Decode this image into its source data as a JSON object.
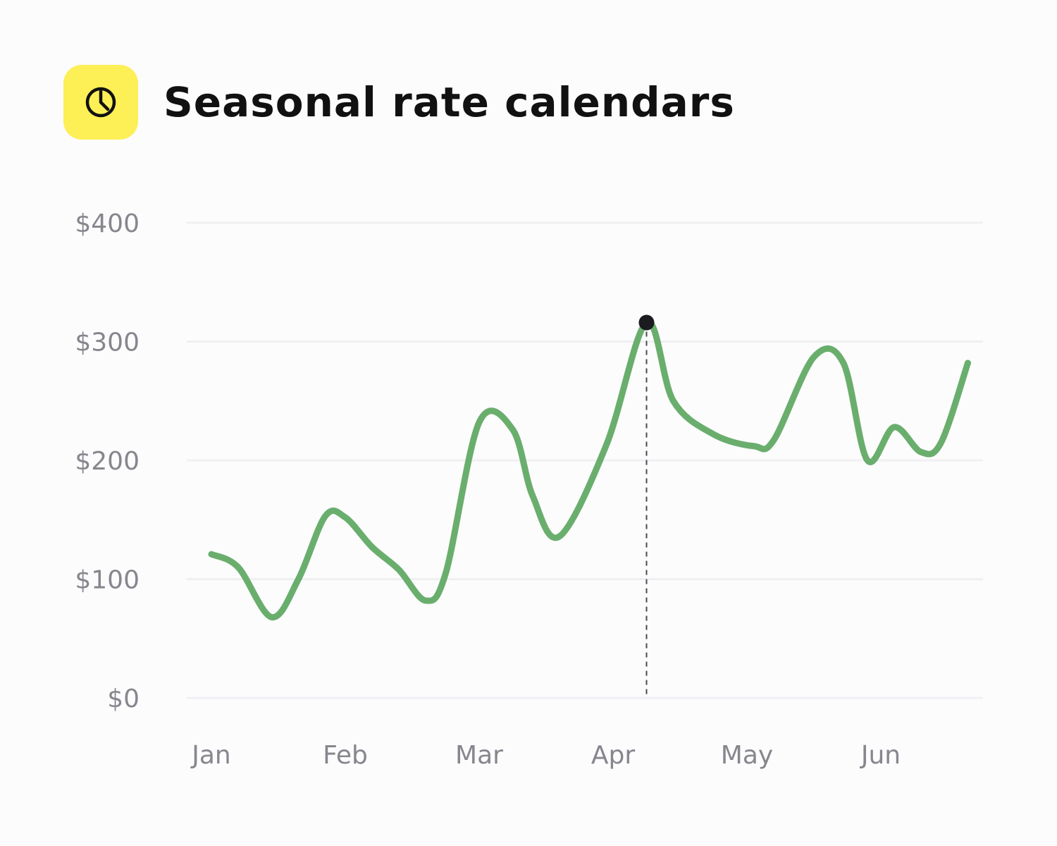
{
  "header": {
    "title": "Seasonal rate calendars",
    "icon": "clock-icon",
    "icon_bg_color": "#fdef56"
  },
  "chart_data": {
    "type": "line",
    "title": "Seasonal rate calendars",
    "xlabel": "",
    "ylabel": "",
    "categories": [
      "Jan",
      "Feb",
      "Mar",
      "Apr",
      "May",
      "Jun"
    ],
    "y_ticks": [
      "$0",
      "$100",
      "$200",
      "$300",
      "$400"
    ],
    "ylim": [
      0,
      400
    ],
    "xlim": [
      0,
      5.65
    ],
    "grid": true,
    "line_color": "#6aae6d",
    "highlight": {
      "x": 3.25,
      "y": 316
    },
    "series": [
      {
        "x": [
          0,
          0.2,
          0.45,
          0.65,
          0.85,
          1.0,
          1.2,
          1.4,
          1.6,
          1.75,
          2.0,
          2.25,
          2.4,
          2.6,
          2.95,
          3.25,
          3.45,
          3.75,
          4.05,
          4.2,
          4.5,
          4.72,
          4.9,
          5.1,
          5.3,
          5.45,
          5.65
        ],
        "values": [
          121,
          110,
          68,
          100,
          153,
          152,
          127,
          108,
          82,
          105,
          232,
          226,
          170,
          136,
          213,
          316,
          250,
          222,
          212,
          217,
          287,
          282,
          200,
          228,
          207,
          215,
          282
        ]
      }
    ]
  }
}
